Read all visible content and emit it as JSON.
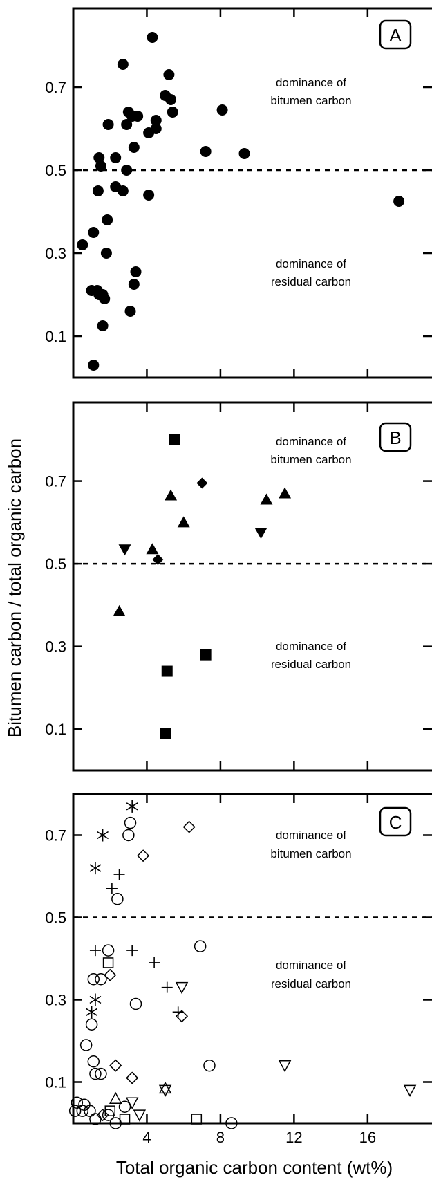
{
  "chart_data": {
    "type": "scatter",
    "xlabel": "Total organic carbon content (wt%)",
    "ylabel": "Bitumen carbon / total organic carbon",
    "x_ticks": [
      4,
      8,
      12,
      16
    ],
    "y_ticks": [
      0.1,
      0.3,
      0.5,
      0.7
    ],
    "xlim": [
      0,
      19.5
    ],
    "colors": {
      "axis": "#000000",
      "marker": "#000000",
      "background": "#ffffff"
    },
    "annotations": {
      "upper_line1": "dominance of",
      "upper_line2": "bitumen carbon",
      "lower_line1": "dominance of",
      "lower_line2": "residual carbon"
    },
    "panels": [
      {
        "label": "A",
        "ylim": [
          0.0,
          0.89
        ],
        "threshold": 0.5,
        "series": [
          {
            "marker": "filled-circle",
            "points": [
              [
                0.5,
                0.32
              ],
              [
                1.0,
                0.21
              ],
              [
                1.1,
                0.35
              ],
              [
                1.1,
                0.03
              ],
              [
                1.3,
                0.21
              ],
              [
                1.4,
                0.2
              ],
              [
                1.35,
                0.45
              ],
              [
                1.4,
                0.53
              ],
              [
                1.5,
                0.51
              ],
              [
                1.6,
                0.2
              ],
              [
                1.7,
                0.19
              ],
              [
                1.6,
                0.125
              ],
              [
                1.8,
                0.3
              ],
              [
                1.85,
                0.38
              ],
              [
                1.9,
                0.61
              ],
              [
                2.3,
                0.46
              ],
              [
                2.3,
                0.53
              ],
              [
                2.7,
                0.45
              ],
              [
                2.7,
                0.755
              ],
              [
                2.9,
                0.5
              ],
              [
                2.9,
                0.61
              ],
              [
                3.0,
                0.64
              ],
              [
                3.1,
                0.16
              ],
              [
                3.2,
                0.63
              ],
              [
                3.3,
                0.225
              ],
              [
                3.3,
                0.555
              ],
              [
                3.4,
                0.255
              ],
              [
                3.5,
                0.63
              ],
              [
                4.1,
                0.59
              ],
              [
                4.1,
                0.44
              ],
              [
                4.3,
                0.82
              ],
              [
                4.5,
                0.6
              ],
              [
                4.5,
                0.62
              ],
              [
                5.0,
                0.68
              ],
              [
                5.2,
                0.73
              ],
              [
                5.3,
                0.67
              ],
              [
                5.4,
                0.64
              ],
              [
                7.2,
                0.545
              ],
              [
                8.1,
                0.645
              ],
              [
                9.3,
                0.54
              ],
              [
                17.7,
                0.425
              ]
            ]
          }
        ]
      },
      {
        "label": "B",
        "ylim": [
          0.0,
          0.89
        ],
        "threshold": 0.5,
        "series": [
          {
            "marker": "filled-square",
            "points": [
              [
                5.5,
                0.8
              ],
              [
                5.1,
                0.24
              ],
              [
                7.2,
                0.28
              ],
              [
                5.0,
                0.09
              ]
            ]
          },
          {
            "marker": "filled-triangle-up",
            "points": [
              [
                5.3,
                0.665
              ],
              [
                6.0,
                0.6
              ],
              [
                4.3,
                0.535
              ],
              [
                2.5,
                0.385
              ],
              [
                10.5,
                0.655
              ],
              [
                11.5,
                0.67
              ]
            ]
          },
          {
            "marker": "filled-triangle-down",
            "points": [
              [
                2.8,
                0.535
              ],
              [
                10.2,
                0.575
              ]
            ]
          },
          {
            "marker": "filled-diamond",
            "points": [
              [
                7.0,
                0.695
              ],
              [
                4.6,
                0.51
              ]
            ]
          }
        ]
      },
      {
        "label": "C",
        "ylim": [
          0.0,
          0.8
        ],
        "threshold": 0.5,
        "series": [
          {
            "marker": "open-circle",
            "points": [
              [
                3.1,
                0.73
              ],
              [
                3.0,
                0.7
              ],
              [
                2.4,
                0.545
              ],
              [
                1.9,
                0.42
              ],
              [
                6.9,
                0.43
              ],
              [
                1.1,
                0.35
              ],
              [
                1.5,
                0.35
              ],
              [
                3.4,
                0.29
              ],
              [
                1.0,
                0.24
              ],
              [
                0.7,
                0.19
              ],
              [
                1.1,
                0.15
              ],
              [
                1.2,
                0.12
              ],
              [
                1.5,
                0.12
              ],
              [
                7.4,
                0.14
              ],
              [
                0.2,
                0.05
              ],
              [
                0.6,
                0.045
              ],
              [
                0.1,
                0.03
              ],
              [
                0.5,
                0.03
              ],
              [
                0.9,
                0.03
              ],
              [
                1.2,
                0.01
              ],
              [
                1.9,
                0.02
              ],
              [
                2.3,
                0.0
              ],
              [
                2.8,
                0.04
              ],
              [
                8.6,
                0.0
              ]
            ]
          },
          {
            "marker": "open-square",
            "points": [
              [
                1.9,
                0.39
              ],
              [
                2.0,
                0.03
              ],
              [
                2.8,
                0.01
              ],
              [
                6.7,
                0.01
              ]
            ]
          },
          {
            "marker": "open-diamond",
            "points": [
              [
                6.3,
                0.72
              ],
              [
                3.8,
                0.65
              ],
              [
                2.0,
                0.36
              ],
              [
                5.9,
                0.26
              ],
              [
                2.3,
                0.14
              ],
              [
                3.2,
                0.11
              ],
              [
                1.6,
                0.02
              ]
            ]
          },
          {
            "marker": "open-triangle-down",
            "points": [
              [
                5.9,
                0.33
              ],
              [
                11.5,
                0.14
              ],
              [
                18.3,
                0.08
              ],
              [
                5.0,
                0.08
              ],
              [
                3.2,
                0.05
              ],
              [
                3.6,
                0.02
              ]
            ]
          },
          {
            "marker": "open-triangle-up",
            "points": [
              [
                2.3,
                0.06
              ],
              [
                5.0,
                0.085
              ]
            ]
          },
          {
            "marker": "plus",
            "points": [
              [
                2.5,
                0.605
              ],
              [
                2.1,
                0.57
              ],
              [
                1.2,
                0.42
              ],
              [
                3.2,
                0.42
              ],
              [
                4.4,
                0.39
              ],
              [
                5.1,
                0.33
              ],
              [
                5.7,
                0.27
              ]
            ]
          },
          {
            "marker": "asterisk",
            "points": [
              [
                3.2,
                0.77
              ],
              [
                1.6,
                0.7
              ],
              [
                1.2,
                0.62
              ],
              [
                1.2,
                0.3
              ],
              [
                1.0,
                0.27
              ]
            ]
          }
        ]
      }
    ]
  }
}
